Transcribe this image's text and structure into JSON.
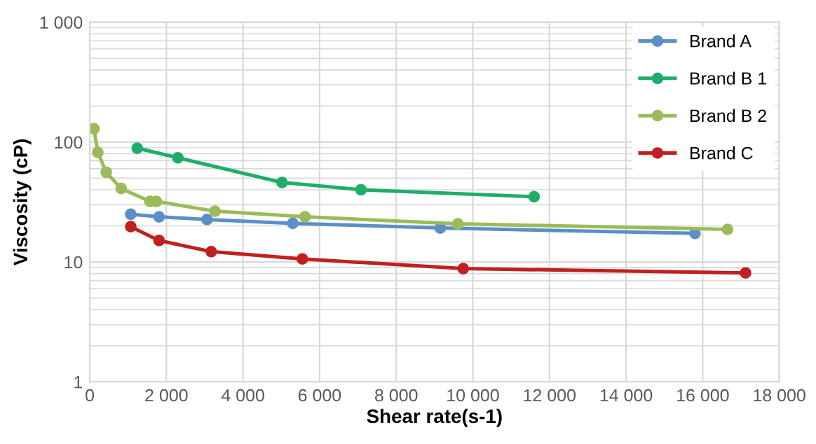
{
  "chart_data": {
    "type": "line",
    "xlabel": "Shear rate(s-1)",
    "ylabel": "Viscosity (cP)",
    "log": "y",
    "grid": true,
    "legend": "top right",
    "marker": "circle",
    "line_style": "solid",
    "xlim": [
      0,
      18000
    ],
    "xticks": [
      0,
      {
        "value": 2000,
        "label": "2 000"
      },
      {
        "value": 4000,
        "label": "4 000"
      },
      {
        "value": 6000,
        "label": "6 000"
      },
      {
        "value": 8000,
        "label": "8 000"
      },
      {
        "value": 10000,
        "label": "10 000"
      },
      {
        "value": 12000,
        "label": "12 000"
      },
      {
        "value": 14000,
        "label": "14 000"
      },
      {
        "value": 16000,
        "label": "16 000"
      },
      {
        "value": 18000,
        "label": "18 000"
      }
    ],
    "ylim": [
      1,
      1000
    ],
    "yticks": [
      1,
      10,
      100,
      {
        "value": 1000,
        "label": "1 000"
      }
    ],
    "series": [
      {
        "name": "Brand A",
        "color": "#5b8fc9",
        "x": [
          1070,
          1810,
          3060,
          5300,
          9150,
          15800
        ],
        "values": [
          25,
          23.8,
          22.6,
          21,
          19.2,
          17.3
        ]
      },
      {
        "name": "Brand B 1",
        "color": "#1fae6a",
        "x": [
          1240,
          2300,
          5020,
          7080,
          11600
        ],
        "values": [
          89,
          74,
          46,
          40,
          35
        ]
      },
      {
        "name": "Brand B 2",
        "color": "#9bbb59",
        "x": [
          110,
          210,
          430,
          820,
          1570,
          1740,
          3270,
          5620,
          9610,
          16650
        ],
        "values": [
          129,
          82,
          56,
          41,
          32,
          32,
          26.5,
          23.8,
          20.8,
          18.7
        ]
      },
      {
        "name": "Brand C",
        "color": "#c0201f",
        "x": [
          1070,
          1810,
          3170,
          5550,
          9750,
          17120
        ],
        "values": [
          19.7,
          15.1,
          12.2,
          10.6,
          8.8,
          8.1
        ]
      }
    ]
  }
}
